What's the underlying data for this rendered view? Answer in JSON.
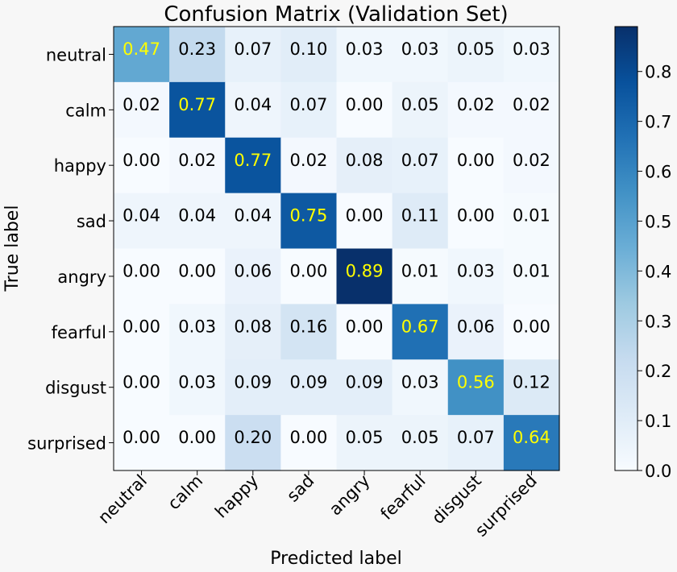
{
  "chart_data": {
    "type": "heatmap",
    "title": "Confusion Matrix (Validation Set)",
    "xlabel": "Predicted label",
    "ylabel": "True label",
    "x_categories": [
      "neutral",
      "calm",
      "happy",
      "sad",
      "angry",
      "fearful",
      "disgust",
      "surprised"
    ],
    "y_categories": [
      "neutral",
      "calm",
      "happy",
      "sad",
      "angry",
      "fearful",
      "disgust",
      "surprised"
    ],
    "values": [
      [
        0.47,
        0.23,
        0.07,
        0.1,
        0.03,
        0.03,
        0.05,
        0.03
      ],
      [
        0.02,
        0.77,
        0.04,
        0.07,
        0.0,
        0.05,
        0.02,
        0.02
      ],
      [
        0.0,
        0.02,
        0.77,
        0.02,
        0.08,
        0.07,
        0.0,
        0.02
      ],
      [
        0.04,
        0.04,
        0.04,
        0.75,
        0.0,
        0.11,
        0.0,
        0.01
      ],
      [
        0.0,
        0.0,
        0.06,
        0.0,
        0.89,
        0.01,
        0.03,
        0.01
      ],
      [
        0.0,
        0.03,
        0.08,
        0.16,
        0.0,
        0.67,
        0.06,
        0.0
      ],
      [
        0.0,
        0.03,
        0.09,
        0.09,
        0.09,
        0.03,
        0.56,
        0.12
      ],
      [
        0.0,
        0.0,
        0.2,
        0.0,
        0.05,
        0.05,
        0.07,
        0.64
      ]
    ],
    "colormap": "Blues",
    "colorbar_ticks": [
      "0.0",
      "0.1",
      "0.2",
      "0.3",
      "0.4",
      "0.5",
      "0.6",
      "0.7",
      "0.8"
    ],
    "colorbar_range": [
      0,
      0.89
    ],
    "text_color_dark": "#000000",
    "text_color_light": "#ffff00",
    "text_threshold": 0.445
  }
}
